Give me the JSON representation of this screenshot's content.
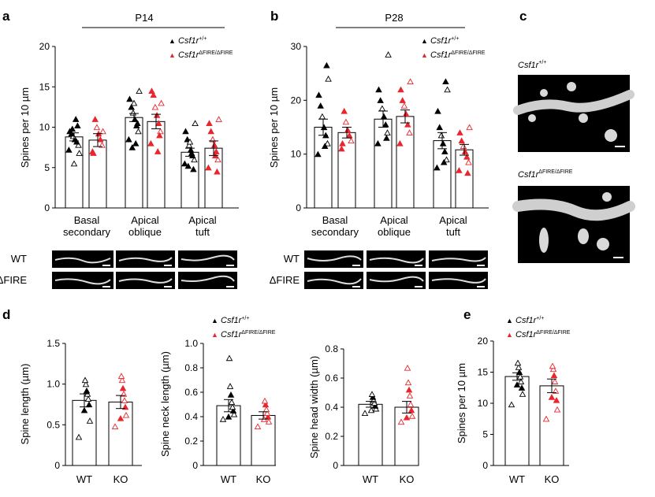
{
  "panel_labels": {
    "a": "a",
    "b": "b",
    "c": "c",
    "d": "d",
    "e": "e"
  },
  "panel_titles": {
    "a": "P14",
    "b": "P28"
  },
  "legend": {
    "wt_gene": "Csf1r",
    "wt_sup": "+/+",
    "ko_gene": "Csf1r",
    "ko_sup": "ΔFIRE/ΔFIRE"
  },
  "strip_labels": {
    "wt": "WT",
    "ko": "ΔFIRE"
  },
  "micrograph_labels": {
    "wt_gene": "Csf1r",
    "wt_sup": "+/+",
    "ko_gene": "Csf1r",
    "ko_sup": "ΔFIRE/ΔFIRE"
  },
  "colors": {
    "wt": "#000000",
    "ko": "#e8262d",
    "axis": "#000000"
  },
  "chart_data": [
    {
      "id": "a",
      "type": "bar",
      "title": "P14",
      "ylabel": "Spines per 10 µm",
      "ylim": [
        0,
        20
      ],
      "yticks": [
        0,
        5,
        10,
        15,
        20
      ],
      "categories": [
        [
          "Basal",
          "secondary"
        ],
        [
          "Apical",
          "oblique"
        ],
        [
          "Apical",
          "tuft"
        ]
      ],
      "series": [
        {
          "name": "Csf1r+/+",
          "values": [
            8.8,
            11.2,
            6.9
          ],
          "err": [
            0.5,
            0.5,
            0.5
          ],
          "points": [
            [
              7.2,
              7.8,
              8.2,
              8.5,
              8.9,
              9.2,
              9.5,
              6.8,
              10.2,
              11.0,
              5.5,
              9.8
            ],
            [
              8.5,
              9.5,
              10.2,
              11.0,
              11.8,
              12.5,
              13.5,
              14.5,
              10.5,
              8.0,
              13.0,
              7.5
            ],
            [
              5.5,
              6.0,
              6.5,
              7.2,
              7.8,
              8.5,
              9.5,
              10.5,
              4.8,
              6.8,
              8.2,
              5.2
            ]
          ]
        },
        {
          "name": "Csf1rΔFIRE/ΔFIRE",
          "values": [
            8.4,
            10.7,
            7.4
          ],
          "err": [
            0.8,
            0.9,
            0.9
          ],
          "points": [
            [
              7.0,
              7.8,
              8.5,
              9.2,
              10.0,
              11.0,
              6.8,
              9.5
            ],
            [
              8.0,
              9.5,
              10.5,
              11.5,
              12.5,
              14.0,
              14.5,
              13.0,
              9.0,
              7.0
            ],
            [
              5.0,
              6.0,
              7.0,
              7.8,
              8.5,
              9.5,
              10.5,
              11.0,
              4.5,
              6.5
            ]
          ]
        }
      ]
    },
    {
      "id": "b",
      "type": "bar",
      "title": "P28",
      "ylabel": "Spines per 10 µm",
      "ylim": [
        0,
        30
      ],
      "yticks": [
        0,
        10,
        20,
        30
      ],
      "categories": [
        [
          "Basal",
          "secondary"
        ],
        [
          "Apical",
          "oblique"
        ],
        [
          "Apical",
          "tuft"
        ]
      ],
      "series": [
        {
          "name": "Csf1r+/+",
          "values": [
            15.0,
            16.5,
            12.5
          ],
          "err": [
            1.5,
            1.5,
            1.5
          ],
          "points": [
            [
              10.0,
              12.0,
              13.5,
              15.0,
              17.0,
              19.0,
              21.0,
              24.0,
              26.5,
              11.5
            ],
            [
              12.0,
              14.0,
              15.5,
              17.0,
              18.5,
              20.0,
              22.0,
              28.5,
              13.0
            ],
            [
              7.5,
              9.0,
              10.5,
              12.0,
              13.5,
              15.0,
              18.0,
              22.0,
              23.5,
              8.5
            ]
          ]
        },
        {
          "name": "Csf1rΔFIRE/ΔFIRE",
          "values": [
            14.0,
            17.0,
            10.8
          ],
          "err": [
            1.0,
            1.2,
            1.0
          ],
          "points": [
            [
              11.0,
              12.5,
              13.5,
              14.5,
              16.0,
              18.0,
              12.0
            ],
            [
              12.0,
              14.0,
              15.5,
              17.5,
              19.0,
              20.0,
              22.0,
              23.5
            ],
            [
              7.0,
              8.5,
              9.5,
              10.5,
              11.5,
              12.5,
              14.0,
              15.0,
              6.5
            ]
          ]
        }
      ]
    },
    {
      "id": "d1",
      "type": "bar",
      "ylabel": "Spine length (µm)",
      "ylim": [
        0,
        1.5
      ],
      "yticks": [
        "0",
        "0.5",
        "1.0",
        "1.5"
      ],
      "categories": [
        "WT",
        "KO"
      ],
      "series": [
        {
          "name": "WT",
          "values": [
            0.8,
            0.78
          ],
          "err": [
            0.08,
            0.08
          ],
          "points": [
            [
              0.35,
              0.55,
              0.75,
              0.82,
              0.88,
              0.92,
              1.0,
              1.05,
              0.68
            ],
            [
              0.48,
              0.62,
              0.72,
              0.8,
              0.88,
              0.95,
              1.05,
              1.1,
              0.58
            ]
          ]
        }
      ]
    },
    {
      "id": "d2",
      "type": "bar",
      "ylabel": "Spine neck length (µm)",
      "ylim": [
        0,
        1.0
      ],
      "yticks": [
        "0",
        "0.2",
        "0.4",
        "0.6",
        "0.8",
        "1.0"
      ],
      "categories": [
        "WT",
        "KO"
      ],
      "series": [
        {
          "name": "WT",
          "values": [
            0.49,
            0.41
          ],
          "err": [
            0.05,
            0.03
          ],
          "points": [
            [
              0.38,
              0.42,
              0.45,
              0.48,
              0.52,
              0.58,
              0.65,
              0.88,
              0.4
            ],
            [
              0.32,
              0.36,
              0.4,
              0.43,
              0.46,
              0.5,
              0.53,
              0.38
            ]
          ]
        }
      ]
    },
    {
      "id": "d3",
      "type": "bar",
      "ylabel": "Spine head width (µm)",
      "ylim": [
        0,
        0.8
      ],
      "yticks": [
        "0",
        "0.2",
        "0.4",
        "0.6",
        "0.8"
      ],
      "categories": [
        "WT",
        "KO"
      ],
      "series": [
        {
          "name": "WT",
          "values": [
            0.42,
            0.4
          ],
          "err": [
            0.02,
            0.04
          ],
          "points": [
            [
              0.36,
              0.39,
              0.41,
              0.43,
              0.45,
              0.47,
              0.49,
              0.38
            ],
            [
              0.3,
              0.34,
              0.38,
              0.42,
              0.48,
              0.52,
              0.57,
              0.67,
              0.33
            ]
          ]
        }
      ]
    },
    {
      "id": "e",
      "type": "bar",
      "ylabel": "Spines per 10 µm",
      "ylim": [
        0,
        20
      ],
      "yticks": [
        0,
        5,
        10,
        15,
        20
      ],
      "categories": [
        "WT",
        "KO"
      ],
      "series": [
        {
          "name": "WT",
          "values": [
            14.3,
            12.8
          ],
          "err": [
            0.6,
            1.1
          ],
          "points": [
            [
              9.8,
              11.5,
              12.5,
              13.5,
              14.3,
              15.0,
              15.8,
              16.5,
              13.0
            ],
            [
              7.5,
              9.0,
              10.5,
              12.0,
              13.5,
              14.5,
              15.5,
              16.0,
              11.0
            ]
          ]
        }
      ]
    }
  ]
}
